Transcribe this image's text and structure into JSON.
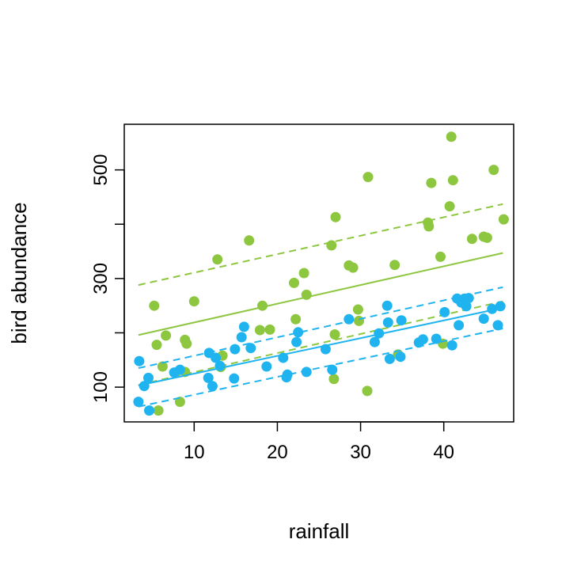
{
  "colors": {
    "green": "#8DC63F",
    "blue": "#1FB4F0",
    "axis": "#000000",
    "background": "#ffffff"
  },
  "chart_data": {
    "type": "scatter",
    "title": "",
    "xlabel": "rainfall",
    "ylabel": "bird abundance",
    "xlim": [
      1.6,
      48.4
    ],
    "ylim": [
      36,
      584
    ],
    "xticks": [
      10,
      20,
      30,
      40
    ],
    "yticks": [
      100,
      300,
      500
    ],
    "xtick_labels": [
      "10",
      "20",
      "30",
      "40"
    ],
    "ytick_labels": [
      "100",
      "300",
      "500"
    ],
    "grid": false,
    "legend": "none",
    "series": [
      {
        "color": "green",
        "points": [
          [
            5.2,
            250
          ],
          [
            5.5,
            178
          ],
          [
            5.7,
            57
          ],
          [
            6.2,
            138
          ],
          [
            6.6,
            195
          ],
          [
            8.3,
            73
          ],
          [
            8.9,
            128
          ],
          [
            8.9,
            187
          ],
          [
            9.1,
            180
          ],
          [
            10.0,
            258
          ],
          [
            12.8,
            335
          ],
          [
            13.2,
            137
          ],
          [
            13.4,
            158
          ],
          [
            16.6,
            370
          ],
          [
            17.9,
            205
          ],
          [
            18.2,
            250
          ],
          [
            19.1,
            206
          ],
          [
            22.0,
            292
          ],
          [
            22.2,
            225
          ],
          [
            23.2,
            310
          ],
          [
            23.5,
            270
          ],
          [
            26.5,
            361
          ],
          [
            26.8,
            115
          ],
          [
            26.9,
            197
          ],
          [
            27.0,
            413
          ],
          [
            28.6,
            324
          ],
          [
            29.1,
            320
          ],
          [
            29.7,
            243
          ],
          [
            29.8,
            222
          ],
          [
            30.8,
            93
          ],
          [
            30.9,
            487
          ],
          [
            34.1,
            325
          ],
          [
            34.5,
            160
          ],
          [
            38.1,
            403
          ],
          [
            38.2,
            396
          ],
          [
            38.5,
            476
          ],
          [
            39.6,
            340
          ],
          [
            39.9,
            180
          ],
          [
            40.7,
            433
          ],
          [
            40.9,
            561
          ],
          [
            41.1,
            481
          ],
          [
            43.4,
            373
          ],
          [
            44.8,
            377
          ],
          [
            45.2,
            375
          ],
          [
            46.0,
            500
          ],
          [
            47.2,
            409
          ]
        ],
        "fit": {
          "x": [
            3.3,
            47.1
          ],
          "y": [
            196,
            347
          ]
        },
        "bands": [
          {
            "x": [
              3.3,
              47.1
            ],
            "y": [
              288,
              437
            ]
          },
          {
            "x": [
              3.3,
              47.1
            ],
            "y": [
              104,
              258
            ]
          }
        ]
      },
      {
        "color": "blue",
        "points": [
          [
            3.3,
            73
          ],
          [
            3.4,
            148
          ],
          [
            4.0,
            102
          ],
          [
            4.5,
            117
          ],
          [
            4.6,
            57
          ],
          [
            7.6,
            127
          ],
          [
            8.3,
            132
          ],
          [
            11.7,
            117
          ],
          [
            11.8,
            163
          ],
          [
            12.2,
            102
          ],
          [
            12.6,
            154
          ],
          [
            13.1,
            139
          ],
          [
            14.8,
            116
          ],
          [
            14.9,
            170
          ],
          [
            15.7,
            192
          ],
          [
            16.0,
            211
          ],
          [
            16.8,
            172
          ],
          [
            18.7,
            138
          ],
          [
            20.7,
            154
          ],
          [
            21.1,
            118
          ],
          [
            21.2,
            123
          ],
          [
            22.3,
            183
          ],
          [
            22.5,
            201
          ],
          [
            23.5,
            128
          ],
          [
            25.8,
            170
          ],
          [
            26.6,
            132
          ],
          [
            28.6,
            225
          ],
          [
            31.7,
            183
          ],
          [
            32.2,
            199
          ],
          [
            33.2,
            250
          ],
          [
            33.3,
            219
          ],
          [
            33.5,
            152
          ],
          [
            34.8,
            156
          ],
          [
            34.9,
            223
          ],
          [
            37.0,
            182
          ],
          [
            37.5,
            188
          ],
          [
            39.1,
            189
          ],
          [
            40.1,
            238
          ],
          [
            41.0,
            177
          ],
          [
            41.6,
            263
          ],
          [
            41.8,
            214
          ],
          [
            42.1,
            256
          ],
          [
            42.5,
            263
          ],
          [
            42.7,
            249
          ],
          [
            43.0,
            264
          ],
          [
            44.8,
            226
          ],
          [
            45.8,
            244
          ],
          [
            46.5,
            214
          ],
          [
            46.8,
            249
          ]
        ],
        "fit": {
          "x": [
            3.3,
            47.1
          ],
          "y": [
            103,
            246
          ]
        },
        "bands": [
          {
            "x": [
              3.3,
              47.1
            ],
            "y": [
              135,
              284
            ]
          },
          {
            "x": [
              3.3,
              47.1
            ],
            "y": [
              64,
              208
            ]
          }
        ]
      }
    ]
  }
}
